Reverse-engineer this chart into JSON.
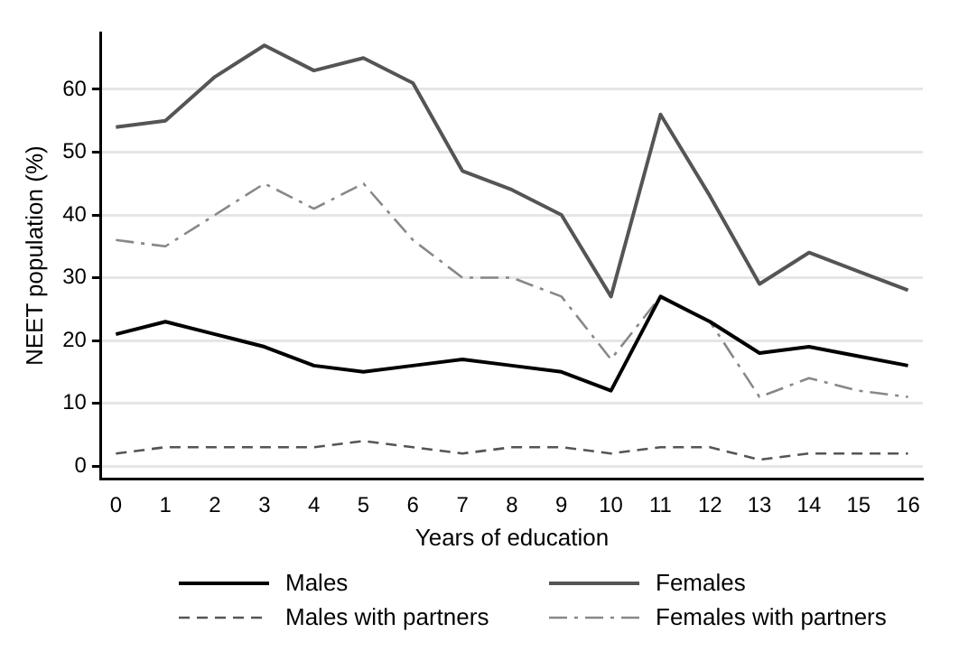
{
  "chart_data": {
    "type": "line",
    "xlabel": "Years of education",
    "ylabel": "NEET population (%)",
    "x": [
      0,
      1,
      2,
      3,
      4,
      5,
      6,
      7,
      8,
      9,
      10,
      11,
      12,
      13,
      14,
      15,
      16
    ],
    "xlim": [
      -0.3,
      16.3
    ],
    "xticks": [
      0,
      1,
      2,
      3,
      4,
      5,
      6,
      7,
      8,
      9,
      10,
      11,
      12,
      13,
      14,
      15,
      16
    ],
    "ylim": [
      -2,
      69
    ],
    "yticks": [
      0,
      10,
      20,
      30,
      40,
      50,
      60
    ],
    "grid": "y",
    "legend": "bottom",
    "marker": "none",
    "series": [
      {
        "name": "Males",
        "color": "#000000",
        "line_style": "solid",
        "values": [
          21,
          23,
          21,
          19,
          16,
          15,
          16,
          17,
          16,
          15,
          12,
          27,
          23,
          18,
          19,
          17.5,
          16
        ]
      },
      {
        "name": "Females",
        "color": "#555555",
        "line_style": "solid",
        "values": [
          54,
          55,
          62,
          67,
          63,
          65,
          61,
          47,
          44,
          40,
          27,
          56,
          43,
          29,
          34,
          31,
          28
        ]
      },
      {
        "name": "Males with partners",
        "color": "#555555",
        "line_style": "dashed",
        "values": [
          2,
          3,
          3,
          3,
          3,
          4,
          3,
          2,
          3,
          3,
          2,
          3,
          3,
          1,
          2,
          2,
          2
        ]
      },
      {
        "name": "Females with partners",
        "color": "#888888",
        "line_style": "dashdot",
        "values": [
          36,
          35,
          40,
          45,
          41,
          45,
          36,
          30,
          30,
          27,
          17,
          27,
          23,
          11,
          14,
          12,
          11
        ]
      }
    ]
  }
}
